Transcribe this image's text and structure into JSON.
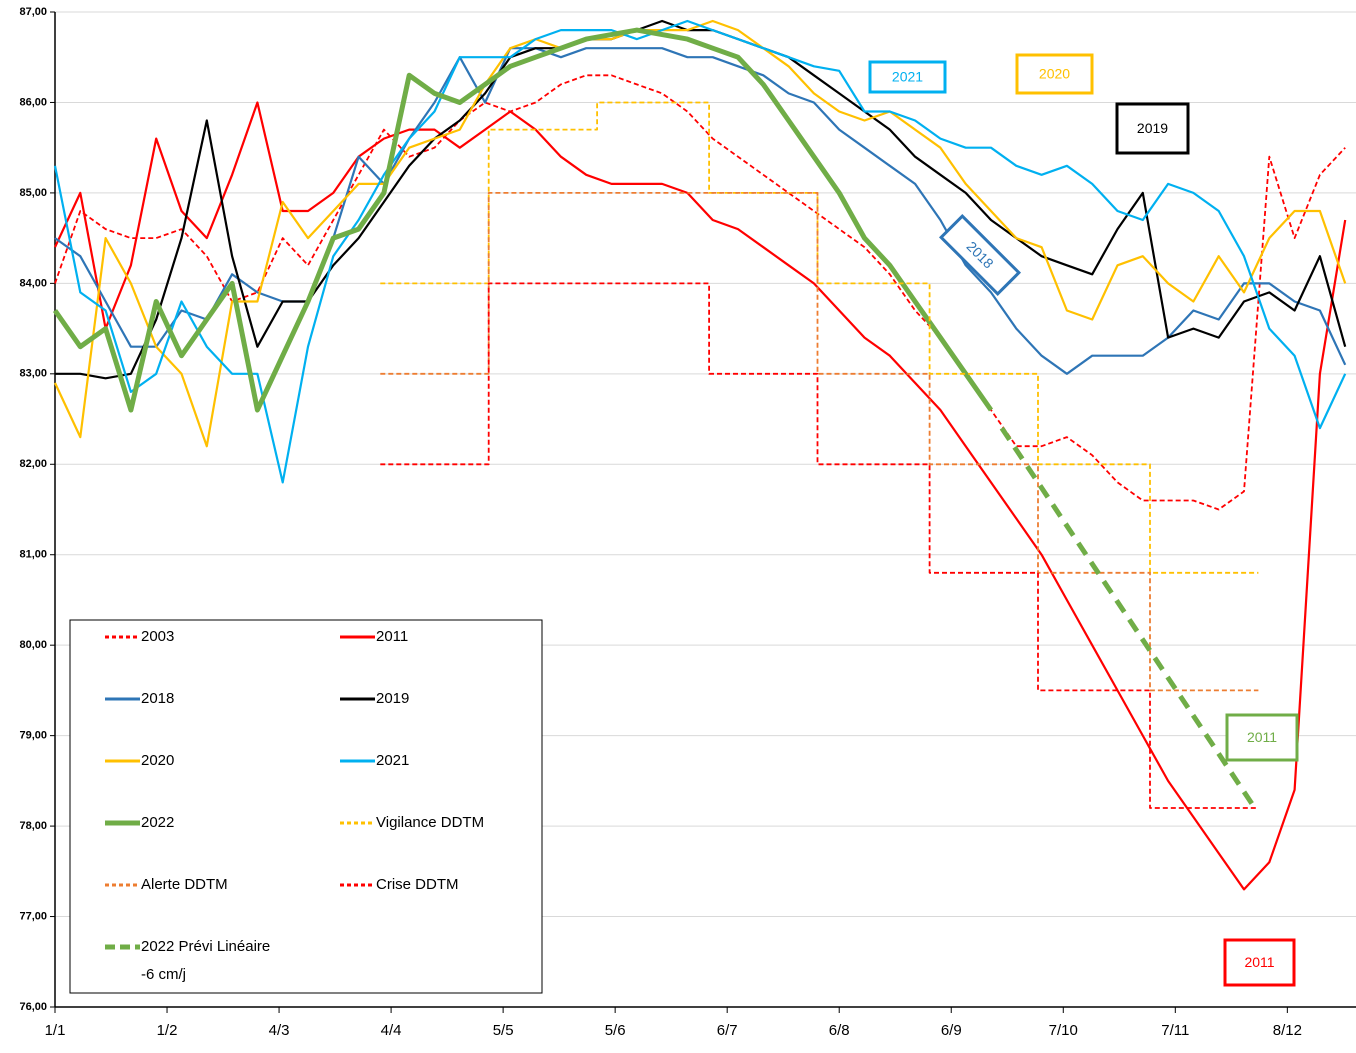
{
  "chart_data": {
    "type": "line",
    "grid": true,
    "ylim": [
      76,
      87
    ],
    "yticks": [
      {
        "value": 76,
        "label": "76,00"
      },
      {
        "value": 77,
        "label": "77,00"
      },
      {
        "value": 78,
        "label": "78,00"
      },
      {
        "value": 79,
        "label": "79,00"
      },
      {
        "value": 80,
        "label": "80,00"
      },
      {
        "value": 81,
        "label": "81,00"
      },
      {
        "value": 82,
        "label": "82,00"
      },
      {
        "value": 83,
        "label": "83,00"
      },
      {
        "value": 84,
        "label": "84,00"
      },
      {
        "value": 85,
        "label": "85,00"
      },
      {
        "value": 86,
        "label": "86,00"
      },
      {
        "value": 87,
        "label": "87,00"
      }
    ],
    "xlim": [
      1,
      361
    ],
    "xticks": [
      {
        "value": 1,
        "label": "1/1"
      },
      {
        "value": 32,
        "label": "1/2"
      },
      {
        "value": 63,
        "label": "4/3"
      },
      {
        "value": 94,
        "label": "4/4"
      },
      {
        "value": 125,
        "label": "5/5"
      },
      {
        "value": 156,
        "label": "5/6"
      },
      {
        "value": 187,
        "label": "6/7"
      },
      {
        "value": 218,
        "label": "6/8"
      },
      {
        "value": 249,
        "label": "6/9"
      },
      {
        "value": 280,
        "label": "7/10"
      },
      {
        "value": 311,
        "label": "7/11"
      },
      {
        "value": 342,
        "label": "8/12"
      }
    ],
    "x": [
      1,
      8,
      15,
      22,
      29,
      36,
      43,
      50,
      57,
      64,
      71,
      78,
      85,
      92,
      99,
      106,
      113,
      120,
      127,
      134,
      141,
      148,
      155,
      162,
      169,
      176,
      183,
      190,
      197,
      204,
      211,
      218,
      225,
      232,
      239,
      246,
      253,
      260,
      267,
      274,
      281,
      288,
      295,
      302,
      309,
      316,
      323,
      330,
      337,
      344,
      351,
      358
    ],
    "series": [
      {
        "name": "2003",
        "color": "#ff0000",
        "style": "dashed",
        "values": [
          84.0,
          84.8,
          84.6,
          84.5,
          84.5,
          84.6,
          84.3,
          83.8,
          83.9,
          84.5,
          84.2,
          84.7,
          85.2,
          85.7,
          85.4,
          85.5,
          85.8,
          86.0,
          85.9,
          86.0,
          86.2,
          86.3,
          86.3,
          86.2,
          86.1,
          85.9,
          85.6,
          85.4,
          85.2,
          85.0,
          84.8,
          84.6,
          84.4,
          84.1,
          83.7,
          83.4,
          83.0,
          82.6,
          82.2,
          82.2,
          82.3,
          82.1,
          81.8,
          81.6,
          81.6,
          81.6,
          81.5,
          81.7,
          85.4,
          84.5,
          85.2,
          85.5
        ]
      },
      {
        "name": "2011",
        "color": "#ff0000",
        "style": "solid",
        "values": [
          84.4,
          85.0,
          83.5,
          84.2,
          85.6,
          84.8,
          84.5,
          85.2,
          86.0,
          84.8,
          84.8,
          85.0,
          85.4,
          85.6,
          85.7,
          85.7,
          85.5,
          85.7,
          85.9,
          85.7,
          85.4,
          85.2,
          85.1,
          85.1,
          85.1,
          85.0,
          84.7,
          84.6,
          84.4,
          84.2,
          84.0,
          83.7,
          83.4,
          83.2,
          82.9,
          82.6,
          82.2,
          81.8,
          81.4,
          81.0,
          80.5,
          80.0,
          79.5,
          79.0,
          78.5,
          78.1,
          77.7,
          77.3,
          77.6,
          78.4,
          83.0,
          84.7
        ]
      },
      {
        "name": "2018",
        "color": "#2e75b6",
        "style": "solid",
        "values": [
          84.5,
          84.3,
          83.8,
          83.3,
          83.3,
          83.7,
          83.6,
          84.1,
          83.9,
          83.8,
          83.8,
          84.5,
          85.4,
          85.1,
          85.6,
          86.0,
          86.5,
          86.0,
          86.6,
          86.6,
          86.5,
          86.6,
          86.6,
          86.6,
          86.6,
          86.5,
          86.5,
          86.4,
          86.3,
          86.1,
          86.0,
          85.7,
          85.5,
          85.3,
          85.1,
          84.7,
          84.2,
          83.9,
          83.5,
          83.2,
          83.0,
          83.2,
          83.2,
          83.2,
          83.4,
          83.7,
          83.6,
          84.0,
          84.0,
          83.8,
          83.7,
          83.1
        ]
      },
      {
        "name": "2019",
        "color": "#000000",
        "style": "solid",
        "values": [
          83.0,
          83.0,
          82.95,
          83.0,
          83.6,
          84.5,
          85.8,
          84.3,
          83.3,
          83.8,
          83.8,
          84.2,
          84.5,
          84.9,
          85.3,
          85.6,
          85.8,
          86.1,
          86.5,
          86.6,
          86.6,
          86.7,
          86.7,
          86.8,
          86.9,
          86.8,
          86.8,
          86.7,
          86.6,
          86.5,
          86.3,
          86.1,
          85.9,
          85.7,
          85.4,
          85.2,
          85.0,
          84.7,
          84.5,
          84.3,
          84.2,
          84.1,
          84.6,
          85.0,
          83.4,
          83.5,
          83.4,
          83.8,
          83.9,
          83.7,
          84.3,
          83.3
        ]
      },
      {
        "name": "2020",
        "color": "#ffc000",
        "style": "solid",
        "values": [
          82.9,
          82.3,
          84.5,
          84.0,
          83.3,
          83.0,
          82.2,
          83.8,
          83.8,
          84.9,
          84.5,
          84.8,
          85.1,
          85.1,
          85.5,
          85.6,
          85.7,
          86.2,
          86.6,
          86.7,
          86.6,
          86.7,
          86.7,
          86.8,
          86.8,
          86.8,
          86.9,
          86.8,
          86.6,
          86.4,
          86.1,
          85.9,
          85.8,
          85.9,
          85.7,
          85.5,
          85.1,
          84.8,
          84.5,
          84.4,
          83.7,
          83.6,
          84.2,
          84.3,
          84.0,
          83.8,
          84.3,
          83.9,
          84.5,
          84.8,
          84.8,
          84.0
        ]
      },
      {
        "name": "2021",
        "color": "#00b0f0",
        "style": "solid",
        "values": [
          85.3,
          83.9,
          83.7,
          82.8,
          83.0,
          83.8,
          83.3,
          83.0,
          83.0,
          81.8,
          83.3,
          84.3,
          84.7,
          85.2,
          85.6,
          85.9,
          86.5,
          86.5,
          86.5,
          86.7,
          86.8,
          86.8,
          86.8,
          86.7,
          86.8,
          86.9,
          86.8,
          86.7,
          86.6,
          86.5,
          86.4,
          86.35,
          85.9,
          85.9,
          85.8,
          85.6,
          85.5,
          85.5,
          85.3,
          85.2,
          85.3,
          85.1,
          84.8,
          84.7,
          85.1,
          85.0,
          84.8,
          84.3,
          83.5,
          83.2,
          82.4,
          83.0
        ]
      },
      {
        "name": "2022",
        "color": "#70ad47",
        "style": "thick",
        "values": [
          83.7,
          83.3,
          83.5,
          82.6,
          83.8,
          83.2,
          83.6,
          84.0,
          82.6,
          83.2,
          83.8,
          84.5,
          84.6,
          85.0,
          86.3,
          86.1,
          86.0,
          86.2,
          86.4,
          86.5,
          86.6,
          86.7,
          86.75,
          86.8,
          86.75,
          86.7,
          86.6,
          86.5,
          86.2,
          85.8,
          85.4,
          85.0,
          84.5,
          84.2,
          83.8,
          83.4,
          83.0,
          82.6,
          null,
          null,
          null,
          null,
          null,
          null,
          null,
          null,
          null,
          null,
          null,
          null,
          null,
          null
        ]
      },
      {
        "name": "Vigilance DDTM",
        "color": "#ffc000",
        "style": "dashed",
        "x": [
          91,
          121,
          121,
          151,
          151,
          182,
          182,
          212,
          212,
          243,
          243,
          273,
          273,
          304,
          304,
          334
        ],
        "values": [
          84,
          84,
          85.7,
          85.7,
          86,
          86,
          85,
          85,
          84,
          84,
          83,
          83,
          82,
          82,
          80.8,
          80.8
        ]
      },
      {
        "name": "Alerte DDTM",
        "color": "#ed7d31",
        "style": "dashed",
        "x": [
          91,
          121,
          121,
          212,
          212,
          243,
          243,
          273,
          273,
          304,
          304,
          334
        ],
        "values": [
          83,
          83,
          85,
          85,
          83,
          83,
          82,
          82,
          80.8,
          80.8,
          79.5,
          79.5
        ]
      },
      {
        "name": "Crise DDTM",
        "color": "#ff0000",
        "style": "dashed",
        "x": [
          91,
          121,
          121,
          182,
          182,
          212,
          212,
          243,
          243,
          273,
          273,
          304,
          304,
          334
        ],
        "values": [
          82,
          82,
          84,
          84,
          83,
          83,
          82,
          82,
          80.8,
          80.8,
          79.5,
          79.5,
          78.2,
          78.2
        ]
      },
      {
        "name": "2022 Prévi Linéaire -6 cm/j",
        "color": "#70ad47",
        "style": "thick-dashed",
        "x": [
          263,
          333
        ],
        "values": [
          82.4,
          78.2
        ]
      }
    ],
    "annotations": [
      {
        "text": "2021",
        "color": "#00b0f0"
      },
      {
        "text": "2020",
        "color": "#ffc000"
      },
      {
        "text": "2019",
        "color": "#000000"
      },
      {
        "text": "2018",
        "color": "#2e75b6"
      },
      {
        "text": "2011",
        "color": "#70ad47"
      },
      {
        "text": "2011",
        "color": "#ff0000"
      }
    ]
  }
}
